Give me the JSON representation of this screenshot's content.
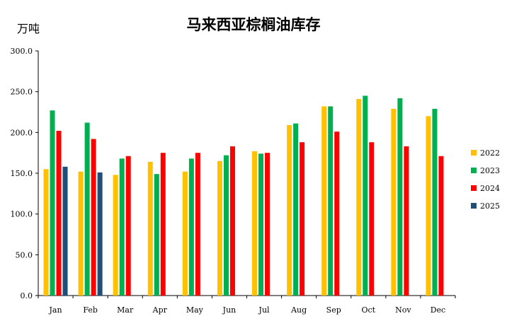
{
  "chart_data": {
    "type": "bar",
    "title": "马来西亚棕榈油库存",
    "ylabel": "万吨",
    "xlabel": "",
    "categories": [
      "Jan",
      "Feb",
      "Mar",
      "Apr",
      "May",
      "Jun",
      "Jul",
      "Aug",
      "Sep",
      "Oct",
      "Nov",
      "Dec"
    ],
    "ylim": [
      0,
      300
    ],
    "yticks": [
      "0.0",
      "50.0",
      "100.0",
      "150.0",
      "200.0",
      "250.0",
      "300.0"
    ],
    "grid": false,
    "legend_position": "right",
    "series": [
      {
        "name": "2022",
        "color": "#FFC000",
        "values": [
          155,
          152,
          148,
          164,
          152,
          165,
          177,
          209,
          232,
          241,
          229,
          220
        ]
      },
      {
        "name": "2023",
        "color": "#00B050",
        "values": [
          227,
          212,
          168,
          149,
          168,
          172,
          174,
          211,
          232,
          245,
          242,
          229
        ]
      },
      {
        "name": "2024",
        "color": "#FF0000",
        "values": [
          202,
          192,
          171,
          175,
          175,
          183,
          175,
          188,
          201,
          188,
          183,
          171
        ]
      },
      {
        "name": "2025",
        "color": "#1F4E79",
        "values": [
          158,
          151,
          null,
          null,
          null,
          null,
          null,
          null,
          null,
          null,
          null,
          null
        ]
      }
    ]
  }
}
